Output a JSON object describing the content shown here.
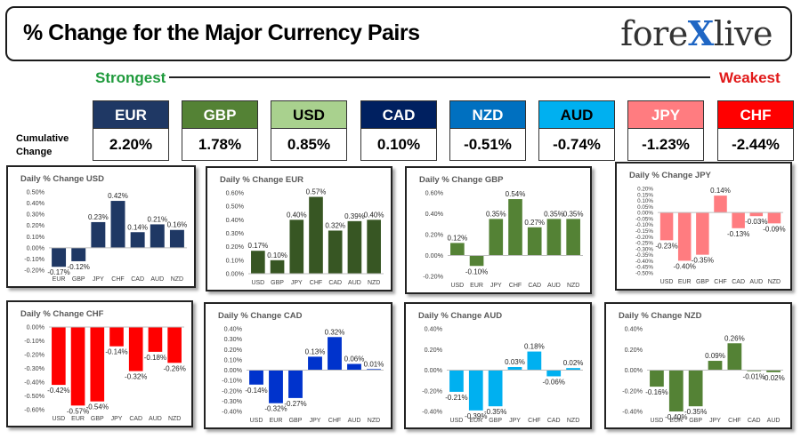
{
  "header": {
    "title": "% Change for the Major Currency Pairs",
    "logo_left": "fore",
    "logo_x": "X",
    "logo_right": "live"
  },
  "ranking": {
    "strongest_label": "Strongest",
    "weakest_label": "Weakest",
    "cumulative_label_line1": "Cumulative",
    "cumulative_label_line2": "Change",
    "currencies": [
      {
        "code": "EUR",
        "value": "2.20%",
        "color": "#1f3864",
        "text_color": "#ffffff"
      },
      {
        "code": "GBP",
        "value": "1.78%",
        "color": "#548235",
        "text_color": "#ffffff"
      },
      {
        "code": "USD",
        "value": "0.85%",
        "color": "#a9d18e",
        "text_color": "#000000"
      },
      {
        "code": "CAD",
        "value": "0.10%",
        "color": "#002060",
        "text_color": "#ffffff"
      },
      {
        "code": "NZD",
        "value": "-0.51%",
        "color": "#0070c0",
        "text_color": "#ffffff"
      },
      {
        "code": "AUD",
        "value": "-0.74%",
        "color": "#00b0f0",
        "text_color": "#000000"
      },
      {
        "code": "JPY",
        "value": "-1.23%",
        "color": "#ff7c80",
        "text_color": "#ffffff"
      },
      {
        "code": "CHF",
        "value": "-2.44%",
        "color": "#ff0000",
        "text_color": "#ffffff"
      }
    ]
  },
  "chart_data": [
    {
      "type": "bar",
      "title": "Daily % Change USD",
      "categories": [
        "EUR",
        "GBP",
        "JPY",
        "CHF",
        "CAD",
        "AUD",
        "NZD"
      ],
      "values": [
        -0.17,
        -0.12,
        0.23,
        0.42,
        0.14,
        0.21,
        0.16
      ],
      "labels": [
        "-0.17%",
        "-0.12%",
        "0.23%",
        "0.42%",
        "0.14%",
        "0.21%",
        "0.16%"
      ],
      "ticks": [
        0.5,
        0.4,
        0.3,
        0.2,
        0.1,
        0.0,
        -0.1,
        -0.2
      ],
      "tick_labels": [
        "0.50%",
        "0.40%",
        "0.30%",
        "0.20%",
        "0.10%",
        "0.00%",
        "-0.10%",
        "-0.20%"
      ],
      "ylim": [
        -0.2,
        0.5
      ],
      "color": "#1f3864"
    },
    {
      "type": "bar",
      "title": "Daily % Change EUR",
      "categories": [
        "USD",
        "GBP",
        "JPY",
        "CHF",
        "CAD",
        "AUD",
        "NZD"
      ],
      "values": [
        0.17,
        0.1,
        0.4,
        0.57,
        0.32,
        0.39,
        0.4
      ],
      "labels": [
        "0.17%",
        "0.10%",
        "0.40%",
        "0.57%",
        "0.32%",
        "0.39%",
        "0.40%"
      ],
      "ticks": [
        0.6,
        0.5,
        0.4,
        0.3,
        0.2,
        0.1,
        0.0
      ],
      "tick_labels": [
        "0.60%",
        "0.50%",
        "0.40%",
        "0.30%",
        "0.20%",
        "0.10%",
        "0.00%"
      ],
      "ylim": [
        0.0,
        0.6
      ],
      "color": "#375623"
    },
    {
      "type": "bar",
      "title": "Daily % Change GBP",
      "categories": [
        "USD",
        "EUR",
        "JPY",
        "CHF",
        "CAD",
        "AUD",
        "NZD"
      ],
      "values": [
        0.12,
        -0.1,
        0.35,
        0.54,
        0.27,
        0.35,
        0.35
      ],
      "labels": [
        "0.12%",
        "-0.10%",
        "0.35%",
        "0.54%",
        "0.27%",
        "0.35%",
        "0.35%"
      ],
      "ticks": [
        0.6,
        0.4,
        0.2,
        0.0,
        -0.2
      ],
      "tick_labels": [
        "0.60%",
        "0.40%",
        "0.20%",
        "0.00%",
        "-0.20%"
      ],
      "ylim": [
        -0.2,
        0.6
      ],
      "color": "#548235"
    },
    {
      "type": "bar",
      "title": "Daily % Change JPY",
      "categories": [
        "USD",
        "EUR",
        "GBP",
        "CHF",
        "CAD",
        "AUD",
        "NZD"
      ],
      "values": [
        -0.23,
        -0.4,
        -0.35,
        0.14,
        -0.13,
        -0.03,
        -0.09
      ],
      "labels": [
        "-0.23%",
        "-0.40%",
        "-0.35%",
        "0.14%",
        "-0.13%",
        "-0.03%",
        "-0.09%"
      ],
      "ticks": [
        0.2,
        0.15,
        0.1,
        0.05,
        0.0,
        -0.05,
        -0.1,
        -0.15,
        -0.2,
        -0.25,
        -0.3,
        -0.35,
        -0.4,
        -0.45,
        -0.5
      ],
      "tick_labels": [
        "0.20%",
        "0.15%",
        "0.10%",
        "0.05%",
        "0.00%",
        "-0.05%",
        "-0.10%",
        "-0.15%",
        "-0.20%",
        "-0.25%",
        "-0.30%",
        "-0.35%",
        "-0.40%",
        "-0.45%",
        "-0.50%"
      ],
      "ylim": [
        -0.5,
        0.2
      ],
      "color": "#ff7c80"
    },
    {
      "type": "bar",
      "title": "Daily % Change CHF",
      "categories": [
        "USD",
        "EUR",
        "GBP",
        "JPY",
        "CAD",
        "AUD",
        "NZD"
      ],
      "values": [
        -0.42,
        -0.57,
        -0.54,
        -0.14,
        -0.32,
        -0.18,
        -0.26
      ],
      "labels": [
        "-0.42%",
        "-0.57%",
        "-0.54%",
        "-0.14%",
        "-0.32%",
        "-0.18%",
        "-0.26%"
      ],
      "ticks": [
        0.0,
        -0.1,
        -0.2,
        -0.3,
        -0.4,
        -0.5,
        -0.6
      ],
      "tick_labels": [
        "0.00%",
        "-0.10%",
        "-0.20%",
        "-0.30%",
        "-0.40%",
        "-0.50%",
        "-0.60%"
      ],
      "ylim": [
        -0.6,
        0.0
      ],
      "color": "#ff0000"
    },
    {
      "type": "bar",
      "title": "Daily % Change CAD",
      "categories": [
        "USD",
        "EUR",
        "GBP",
        "JPY",
        "CHF",
        "AUD",
        "NZD"
      ],
      "values": [
        -0.14,
        -0.32,
        -0.27,
        0.13,
        0.32,
        0.06,
        0.01
      ],
      "labels": [
        "-0.14%",
        "-0.32%",
        "-0.27%",
        "0.13%",
        "0.32%",
        "0.06%",
        "0.01%"
      ],
      "ticks": [
        0.4,
        0.3,
        0.2,
        0.1,
        0.0,
        -0.1,
        -0.2,
        -0.3,
        -0.4
      ],
      "tick_labels": [
        "0.40%",
        "0.30%",
        "0.20%",
        "0.10%",
        "0.00%",
        "-0.10%",
        "-0.20%",
        "-0.30%",
        "-0.40%"
      ],
      "ylim": [
        -0.4,
        0.4
      ],
      "color": "#0033cc"
    },
    {
      "type": "bar",
      "title": "Daily % Change AUD",
      "categories": [
        "USD",
        "EUR",
        "GBP",
        "JPY",
        "CHF",
        "CAD",
        "NZD"
      ],
      "values": [
        -0.21,
        -0.39,
        -0.35,
        0.03,
        0.18,
        -0.06,
        0.02
      ],
      "labels": [
        "-0.21%",
        "-0.39%",
        "-0.35%",
        "0.03%",
        "0.18%",
        "-0.06%",
        "0.02%"
      ],
      "ticks": [
        0.4,
        0.2,
        0.0,
        -0.2,
        -0.4
      ],
      "tick_labels": [
        "0.40%",
        "0.20%",
        "0.00%",
        "-0.20%",
        "-0.40%"
      ],
      "ylim": [
        -0.4,
        0.4
      ],
      "color": "#00b0f0"
    },
    {
      "type": "bar",
      "title": "Daily % Change NZD",
      "categories": [
        "USD",
        "EUR",
        "GBP",
        "JPY",
        "CHF",
        "CAD",
        "AUD"
      ],
      "values": [
        -0.16,
        -0.4,
        -0.35,
        0.09,
        0.26,
        -0.01,
        -0.02
      ],
      "labels": [
        "-0.16%",
        "-0.40%",
        "-0.35%",
        "0.09%",
        "0.26%",
        "-0.01%",
        "-0.02%"
      ],
      "ticks": [
        0.4,
        0.2,
        0.0,
        -0.2,
        -0.4
      ],
      "tick_labels": [
        "0.40%",
        "0.20%",
        "0.00%",
        "-0.20%",
        "-0.40%"
      ],
      "ylim": [
        -0.4,
        0.4
      ],
      "color": "#548235"
    }
  ]
}
